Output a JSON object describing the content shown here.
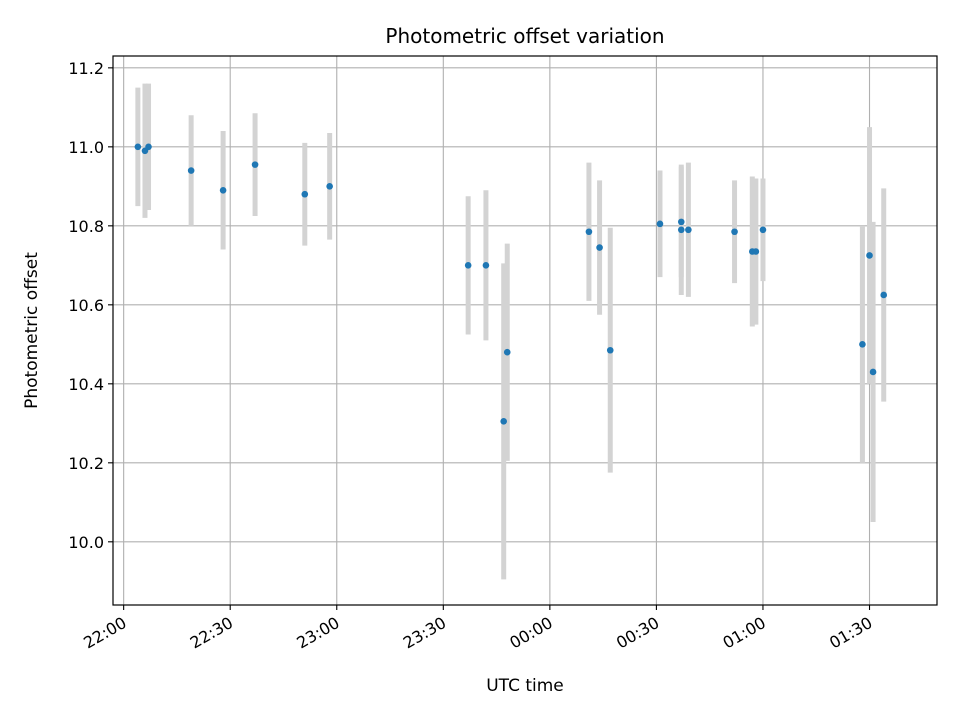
{
  "chart_data": {
    "type": "scatter",
    "title": "Photometric offset variation",
    "xlabel": "UTC time",
    "ylabel": "Photometric offset",
    "x_unit": "UTC time (HH:MM)",
    "xlim": [
      "21:57",
      "01:49"
    ],
    "ylim": [
      9.84,
      11.23
    ],
    "x_ticks": [
      "22:00",
      "22:30",
      "23:00",
      "23:30",
      "00:00",
      "00:30",
      "01:00",
      "01:30"
    ],
    "y_ticks": [
      10.0,
      10.2,
      10.4,
      10.6,
      10.8,
      11.0,
      11.2
    ],
    "y_tick_labels": [
      "10.0",
      "10.2",
      "10.4",
      "10.6",
      "10.8",
      "11.0",
      "11.2"
    ],
    "grid": true,
    "point_color": "#1f77b4",
    "errorbar_color": "#d3d3d3",
    "points": [
      {
        "x": "22:04",
        "y": 11.0,
        "err": 0.15
      },
      {
        "x": "22:06",
        "y": 10.99,
        "err": 0.17
      },
      {
        "x": "22:07",
        "y": 11.0,
        "err": 0.16
      },
      {
        "x": "22:19",
        "y": 10.94,
        "err": 0.14
      },
      {
        "x": "22:28",
        "y": 10.89,
        "err": 0.15
      },
      {
        "x": "22:37",
        "y": 10.955,
        "err": 0.13
      },
      {
        "x": "22:51",
        "y": 10.88,
        "err": 0.13
      },
      {
        "x": "22:58",
        "y": 10.9,
        "err": 0.135
      },
      {
        "x": "23:37",
        "y": 10.7,
        "err": 0.175
      },
      {
        "x": "23:42",
        "y": 10.7,
        "err": 0.19
      },
      {
        "x": "23:47",
        "y": 10.305,
        "err": 0.4
      },
      {
        "x": "23:48",
        "y": 10.48,
        "err": 0.275
      },
      {
        "x": "00:11",
        "y": 10.785,
        "err": 0.175
      },
      {
        "x": "00:14",
        "y": 10.745,
        "err": 0.17
      },
      {
        "x": "00:17",
        "y": 10.485,
        "err": 0.31
      },
      {
        "x": "00:31",
        "y": 10.805,
        "err": 0.135
      },
      {
        "x": "00:37",
        "y": 10.81,
        "err": 0.14
      },
      {
        "x": "00:37",
        "y": 10.79,
        "err": 0.165
      },
      {
        "x": "00:39",
        "y": 10.79,
        "err": 0.17
      },
      {
        "x": "00:52",
        "y": 10.785,
        "err": 0.13
      },
      {
        "x": "00:57",
        "y": 10.735,
        "err": 0.19
      },
      {
        "x": "00:58",
        "y": 10.735,
        "err": 0.185
      },
      {
        "x": "01:00",
        "y": 10.79,
        "err": 0.13
      },
      {
        "x": "01:28",
        "y": 10.5,
        "err": 0.3
      },
      {
        "x": "01:30",
        "y": 10.725,
        "err": 0.325
      },
      {
        "x": "01:31",
        "y": 10.43,
        "err": 0.38
      },
      {
        "x": "01:34",
        "y": 10.625,
        "err": 0.27
      }
    ]
  }
}
